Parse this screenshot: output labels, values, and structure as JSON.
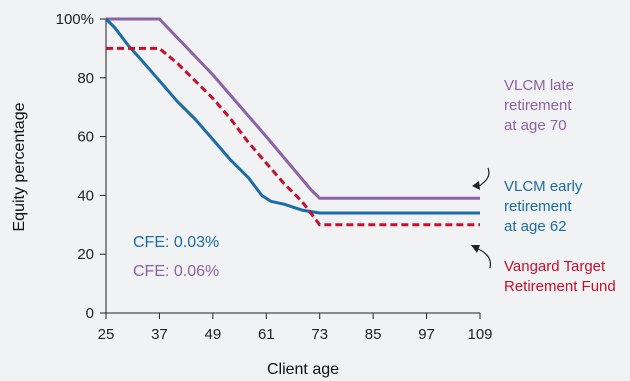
{
  "chart_data": {
    "type": "line",
    "xlabel": "Client age",
    "ylabel": "Equity percentage",
    "xlim": [
      25,
      109
    ],
    "ylim": [
      0,
      100
    ],
    "x_ticks": [
      "25",
      "37",
      "49",
      "61",
      "73",
      "85",
      "97",
      "109"
    ],
    "y_ticks": [
      "0",
      "20",
      "40",
      "60",
      "80",
      "100%"
    ],
    "series": [
      {
        "key": "late",
        "color": "#8c62a8",
        "dash": false,
        "label_lines": [
          "VLCM late",
          "retirement",
          "at age 70"
        ],
        "points": [
          [
            25,
            100
          ],
          [
            37,
            100
          ],
          [
            49,
            81
          ],
          [
            61,
            60
          ],
          [
            71,
            42
          ],
          [
            73,
            39
          ],
          [
            109,
            39
          ]
        ]
      },
      {
        "key": "early",
        "color": "#1b6ca8",
        "dash": false,
        "label_lines": [
          "VLCM early",
          "retirement",
          "at age 62"
        ],
        "points": [
          [
            25,
            100
          ],
          [
            27,
            97
          ],
          [
            30,
            91
          ],
          [
            33,
            86
          ],
          [
            37,
            79
          ],
          [
            41,
            72
          ],
          [
            45,
            66
          ],
          [
            49,
            59
          ],
          [
            53,
            52
          ],
          [
            57,
            46
          ],
          [
            60,
            40
          ],
          [
            62,
            38
          ],
          [
            65,
            37
          ],
          [
            69,
            35
          ],
          [
            73,
            34
          ],
          [
            109,
            34
          ]
        ]
      },
      {
        "key": "target",
        "color": "#c8102e",
        "dash": true,
        "label_lines": [
          "Vangard Target",
          "Retirement Fund"
        ],
        "points": [
          [
            25,
            90
          ],
          [
            37,
            90
          ],
          [
            41,
            85
          ],
          [
            45,
            79
          ],
          [
            49,
            73
          ],
          [
            53,
            66
          ],
          [
            57,
            58
          ],
          [
            61,
            51
          ],
          [
            65,
            44
          ],
          [
            69,
            38
          ],
          [
            73,
            30
          ],
          [
            109,
            30
          ]
        ]
      }
    ],
    "annotations": {
      "cfe_early": "CFE: 0.03%",
      "cfe_late": "CFE: 0.06%"
    }
  }
}
